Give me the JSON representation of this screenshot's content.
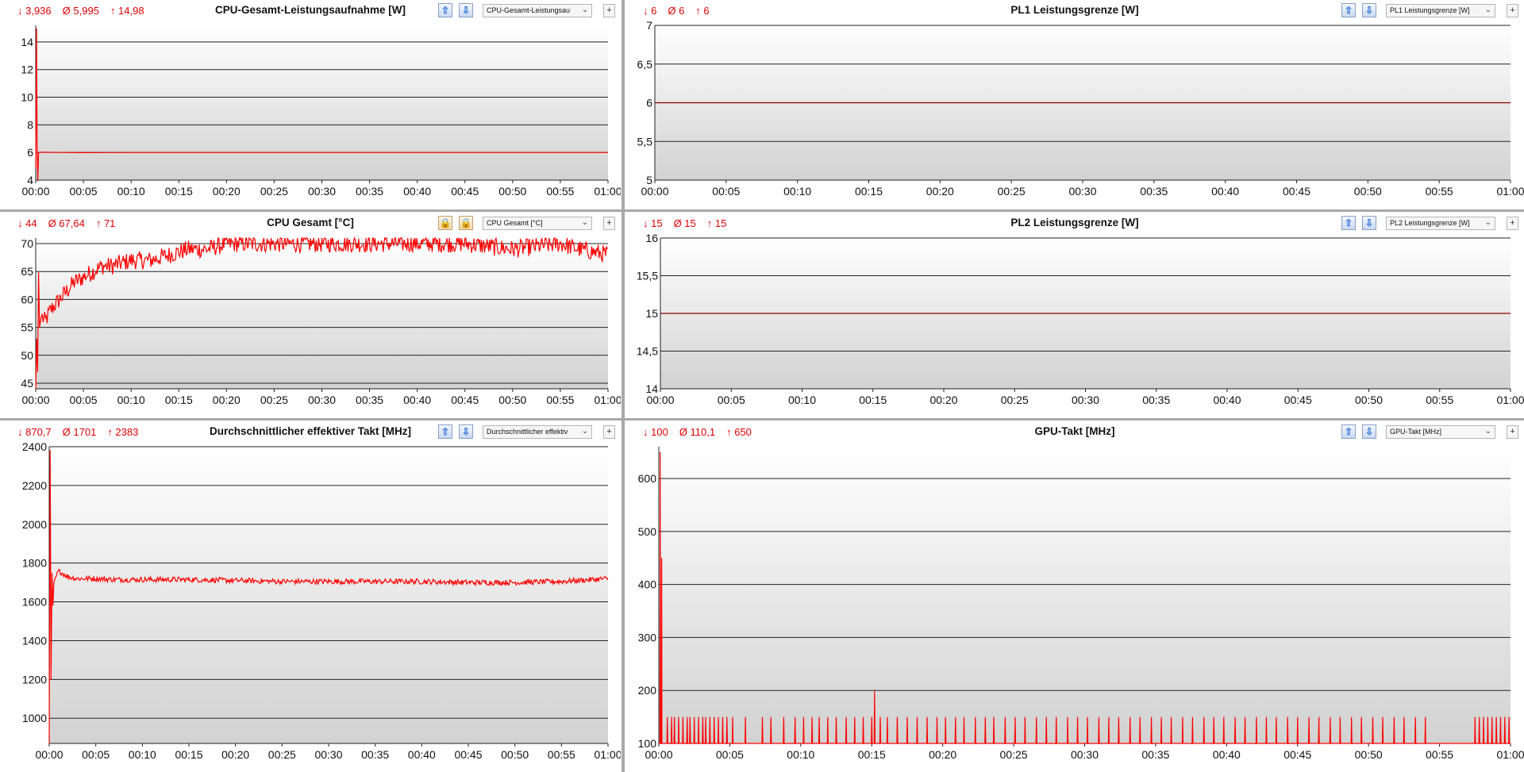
{
  "panels": [
    {
      "id": "cpu-power",
      "stats": {
        "min": "↓ 3,936",
        "avg": "Ø 5,995",
        "max": "↑ 14,98"
      },
      "title": "CPU-Gesamt-Leistungsaufnahme [W]",
      "dropdown": "CPU-Gesamt-Leistungsau",
      "lock_icons": false,
      "chart_data": {
        "type": "line",
        "ylim": [
          4,
          15.2
        ],
        "yticks": [
          4,
          6,
          8,
          10,
          12,
          14
        ],
        "ytick_labels": [
          "4",
          "6",
          "8",
          "10",
          "12",
          "14"
        ],
        "xticks": [
          "00:00",
          "00:05",
          "00:10",
          "00:15",
          "00:20",
          "00:25",
          "00:30",
          "00:35",
          "00:40",
          "00:45",
          "00:50",
          "00:55",
          "01:00"
        ],
        "xlim_min": [
          0,
          60
        ],
        "series_color": "#ff0000",
        "points": [
          [
            0,
            4.8
          ],
          [
            0.08,
            14.98
          ],
          [
            0.15,
            6.4
          ],
          [
            0.22,
            3.94
          ],
          [
            0.3,
            6.0
          ],
          [
            0.5,
            6.02
          ],
          [
            5,
            5.99
          ],
          [
            10,
            6.0
          ],
          [
            20,
            6.0
          ],
          [
            30,
            6.0
          ],
          [
            40,
            6.0
          ],
          [
            50,
            6.0
          ],
          [
            60,
            6.0
          ]
        ]
      }
    },
    {
      "id": "pl1",
      "stats": {
        "min": "↓ 6",
        "avg": "Ø 6",
        "max": "↑ 6"
      },
      "title": "PL1 Leistungsgrenze [W]",
      "dropdown": "PL1 Leistungsgrenze [W]",
      "lock_icons": false,
      "chart_data": {
        "type": "line",
        "ylim": [
          5,
          7
        ],
        "yticks": [
          5,
          5.5,
          6,
          6.5,
          7
        ],
        "ytick_labels": [
          "5",
          "5,5",
          "6",
          "6,5",
          "7"
        ],
        "xticks": [
          "00:00",
          "00:05",
          "00:10",
          "00:15",
          "00:20",
          "00:25",
          "00:30",
          "00:35",
          "00:40",
          "00:45",
          "00:50",
          "00:55",
          "01:00"
        ],
        "xlim_min": [
          0,
          60
        ],
        "series_color": "#8b0000",
        "points": [
          [
            0,
            6
          ],
          [
            60,
            6
          ]
        ]
      }
    },
    {
      "id": "cpu-temp",
      "stats": {
        "min": "↓ 44",
        "avg": "Ø 67,64",
        "max": "↑ 71"
      },
      "title": "CPU Gesamt [°C]",
      "dropdown": "CPU Gesamt [°C]",
      "lock_icons": true,
      "chart_data": {
        "type": "line",
        "ylim": [
          44,
          71
        ],
        "yticks": [
          45,
          50,
          55,
          60,
          65,
          70
        ],
        "ytick_labels": [
          "45",
          "50",
          "55",
          "60",
          "65",
          "70"
        ],
        "xticks": [
          "00:00",
          "00:05",
          "00:10",
          "00:15",
          "00:20",
          "00:25",
          "00:30",
          "00:35",
          "00:40",
          "00:45",
          "00:50",
          "00:55",
          "01:00"
        ],
        "xlim_min": [
          0,
          60
        ],
        "series_color": "#ff0000",
        "points": [
          [
            0,
            44
          ],
          [
            0.1,
            53
          ],
          [
            0.2,
            47
          ],
          [
            0.3,
            65
          ],
          [
            0.4,
            55
          ],
          [
            0.6,
            57
          ],
          [
            1,
            56
          ],
          [
            1.5,
            58
          ],
          [
            2,
            59
          ],
          [
            2.5,
            60
          ],
          [
            3,
            61
          ],
          [
            3.5,
            62
          ],
          [
            4,
            63
          ],
          [
            5,
            64
          ],
          [
            6,
            65
          ],
          [
            7,
            66
          ],
          [
            8,
            66
          ],
          [
            10,
            67
          ],
          [
            12,
            67
          ],
          [
            14,
            68
          ],
          [
            16,
            69
          ],
          [
            18,
            69
          ],
          [
            20,
            70
          ],
          [
            25,
            70
          ],
          [
            30,
            70
          ],
          [
            35,
            70
          ],
          [
            40,
            70
          ],
          [
            45,
            70
          ],
          [
            50,
            69
          ],
          [
            55,
            70
          ],
          [
            57,
            69
          ],
          [
            60,
            68
          ]
        ],
        "noise": 1.6
      }
    },
    {
      "id": "pl2",
      "stats": {
        "min": "↓ 15",
        "avg": "Ø 15",
        "max": "↑ 15"
      },
      "title": "PL2 Leistungsgrenze [W]",
      "dropdown": "PL2 Leistungsgrenze [W]",
      "lock_icons": false,
      "chart_data": {
        "type": "line",
        "ylim": [
          14,
          16
        ],
        "yticks": [
          14,
          14.5,
          15,
          15.5,
          16
        ],
        "ytick_labels": [
          "14",
          "14,5",
          "15",
          "15,5",
          "16"
        ],
        "xticks": [
          "00:00",
          "00:05",
          "00:10",
          "00:15",
          "00:20",
          "00:25",
          "00:30",
          "00:35",
          "00:40",
          "00:45",
          "00:50",
          "00:55",
          "01:00"
        ],
        "xlim_min": [
          0,
          60
        ],
        "series_color": "#8b0000",
        "points": [
          [
            0,
            15
          ],
          [
            60,
            15
          ]
        ]
      }
    },
    {
      "id": "eff-clock",
      "stats": {
        "min": "↓ 870,7",
        "avg": "Ø 1701",
        "max": "↑ 2383"
      },
      "title": "Durchschnittlicher effektiver Takt [MHz]",
      "dropdown": "Durchschnittlicher effektiv",
      "lock_icons": false,
      "chart_data": {
        "type": "line",
        "ylim": [
          870,
          2400
        ],
        "yticks": [
          1000,
          1200,
          1400,
          1600,
          1800,
          2000,
          2200,
          2400
        ],
        "ytick_labels": [
          "1000",
          "1200",
          "1400",
          "1600",
          "1800",
          "2000",
          "2200",
          "2400"
        ],
        "xticks": [
          "00:00",
          "00:05",
          "00:10",
          "00:15",
          "00:20",
          "00:25",
          "00:30",
          "00:35",
          "00:40",
          "00:45",
          "00:50",
          "00:55",
          "01:00"
        ],
        "xlim_min": [
          0,
          60
        ],
        "series_color": "#ff0000",
        "points": [
          [
            0,
            870.7
          ],
          [
            0.1,
            2383
          ],
          [
            0.2,
            1200
          ],
          [
            0.3,
            1750
          ],
          [
            0.4,
            1580
          ],
          [
            0.5,
            1700
          ],
          [
            1,
            1760
          ],
          [
            2,
            1730
          ],
          [
            3,
            1720
          ],
          [
            5,
            1720
          ],
          [
            7,
            1715
          ],
          [
            10,
            1715
          ],
          [
            15,
            1715
          ],
          [
            20,
            1710
          ],
          [
            25,
            1705
          ],
          [
            30,
            1705
          ],
          [
            35,
            1705
          ],
          [
            40,
            1705
          ],
          [
            45,
            1700
          ],
          [
            50,
            1700
          ],
          [
            55,
            1705
          ],
          [
            60,
            1720
          ]
        ],
        "noise": 14
      }
    },
    {
      "id": "gpu-clock",
      "stats": {
        "min": "↓ 100",
        "avg": "Ø 110,1",
        "max": "↑ 650"
      },
      "title": "GPU-Takt [MHz]",
      "dropdown": "GPU-Takt [MHz]",
      "lock_icons": false,
      "chart_data": {
        "type": "line",
        "ylim": [
          100,
          660
        ],
        "yticks": [
          100,
          200,
          300,
          400,
          500,
          600
        ],
        "ytick_labels": [
          "100",
          "200",
          "300",
          "400",
          "500",
          "600"
        ],
        "xticks": [
          "00:00",
          "00:05",
          "00:10",
          "00:15",
          "00:20",
          "00:25",
          "00:30",
          "00:35",
          "00:40",
          "00:45",
          "00:50",
          "00:55",
          "01:00"
        ],
        "xlim_min": [
          0,
          60
        ],
        "series_color": "#ff0000",
        "baseline": 100,
        "peaks": [
          [
            0.1,
            650
          ],
          [
            0.2,
            450
          ],
          [
            15.2,
            200
          ]
        ],
        "spike_value": 150,
        "spikes_min": [
          0.6,
          0.9,
          1.1,
          1.4,
          1.7,
          2.0,
          2.2,
          2.5,
          2.8,
          3.1,
          3.3,
          3.6,
          3.9,
          4.2,
          4.5,
          4.8,
          5.2,
          6.1,
          7.3,
          7.9,
          8.8,
          9.6,
          10.2,
          10.8,
          11.3,
          11.9,
          12.5,
          13.2,
          13.8,
          14.4,
          15.0,
          15.6,
          16.1,
          16.8,
          17.5,
          18.2,
          18.9,
          19.6,
          20.2,
          20.9,
          21.5,
          22.3,
          23.0,
          23.6,
          24.4,
          25.1,
          25.8,
          26.6,
          27.3,
          28.0,
          28.8,
          29.5,
          30.2,
          31.0,
          31.7,
          32.4,
          33.2,
          33.9,
          34.7,
          35.4,
          36.1,
          36.9,
          37.6,
          38.4,
          39.1,
          39.8,
          40.6,
          41.3,
          42.1,
          42.8,
          43.5,
          44.3,
          45.0,
          45.8,
          46.5,
          47.3,
          48.0,
          48.8,
          49.5,
          50.3,
          51.0,
          51.8,
          52.5,
          53.3,
          54.0,
          57.5,
          57.8,
          58.1,
          58.4,
          58.7,
          59.0,
          59.3,
          59.6,
          59.9
        ]
      }
    }
  ]
}
